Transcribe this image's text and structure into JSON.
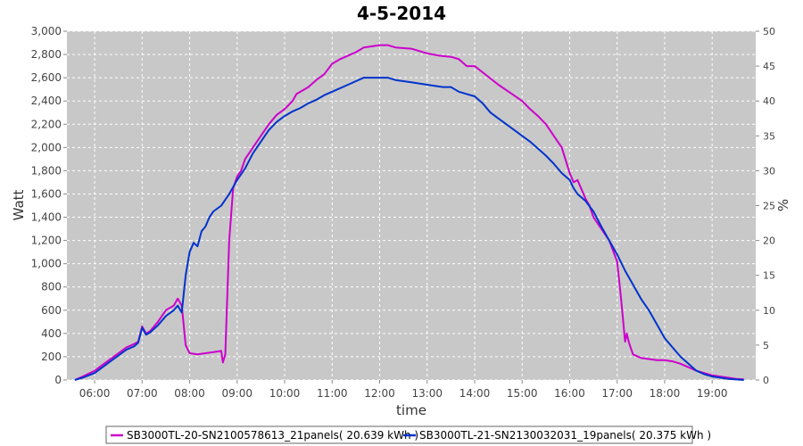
{
  "chart_data": {
    "type": "line",
    "title": "4-5-2014",
    "xlabel": "time",
    "ylabel": "Watt",
    "y2label": "%",
    "x_ticks": [
      "06:00",
      "07:00",
      "08:00",
      "09:00",
      "10:00",
      "11:00",
      "12:00",
      "13:00",
      "14:00",
      "15:00",
      "16:00",
      "17:00",
      "18:00",
      "19:00"
    ],
    "y_ticks": [
      "0",
      "200",
      "400",
      "600",
      "800",
      "1,000",
      "1,200",
      "1,400",
      "1,600",
      "1,800",
      "2,000",
      "2,200",
      "2,400",
      "2,600",
      "2,800",
      "3,000"
    ],
    "y2_ticks": [
      "0",
      "5",
      "10",
      "15",
      "20",
      "25",
      "30",
      "35",
      "40",
      "45",
      "50"
    ],
    "xlim": [
      "05:25",
      "19:55"
    ],
    "ylim": [
      0,
      3000
    ],
    "y2lim": [
      0,
      50
    ],
    "grid": true,
    "legend_position": "bottom",
    "colors": {
      "plot_bg": "#c8c8c8",
      "grid": "#ffffff"
    },
    "series": [
      {
        "name": "SB3000TL-20-SN2100578613_21panels( 20.639 kWh )",
        "color": "#cc00cc",
        "points": [
          [
            "05:35",
            0
          ],
          [
            "05:45",
            30
          ],
          [
            "06:00",
            80
          ],
          [
            "06:10",
            130
          ],
          [
            "06:20",
            180
          ],
          [
            "06:30",
            230
          ],
          [
            "06:40",
            280
          ],
          [
            "06:50",
            310
          ],
          [
            "06:55",
            330
          ],
          [
            "07:00",
            460
          ],
          [
            "07:05",
            400
          ],
          [
            "07:10",
            420
          ],
          [
            "07:20",
            500
          ],
          [
            "07:30",
            600
          ],
          [
            "07:40",
            640
          ],
          [
            "07:45",
            700
          ],
          [
            "07:50",
            640
          ],
          [
            "07:55",
            300
          ],
          [
            "08:00",
            230
          ],
          [
            "08:10",
            220
          ],
          [
            "08:20",
            230
          ],
          [
            "08:30",
            240
          ],
          [
            "08:40",
            250
          ],
          [
            "08:42",
            150
          ],
          [
            "08:45",
            220
          ],
          [
            "08:50",
            1200
          ],
          [
            "08:55",
            1650
          ],
          [
            "09:00",
            1750
          ],
          [
            "09:05",
            1800
          ],
          [
            "09:10",
            1900
          ],
          [
            "09:20",
            2000
          ],
          [
            "09:30",
            2100
          ],
          [
            "09:40",
            2200
          ],
          [
            "09:50",
            2280
          ],
          [
            "10:00",
            2330
          ],
          [
            "10:10",
            2400
          ],
          [
            "10:15",
            2460
          ],
          [
            "10:30",
            2520
          ],
          [
            "10:40",
            2580
          ],
          [
            "10:50",
            2630
          ],
          [
            "11:00",
            2720
          ],
          [
            "11:10",
            2760
          ],
          [
            "11:20",
            2790
          ],
          [
            "11:30",
            2820
          ],
          [
            "11:40",
            2860
          ],
          [
            "12:00",
            2880
          ],
          [
            "12:10",
            2880
          ],
          [
            "12:20",
            2860
          ],
          [
            "12:40",
            2850
          ],
          [
            "13:00",
            2810
          ],
          [
            "13:15",
            2790
          ],
          [
            "13:30",
            2780
          ],
          [
            "13:40",
            2760
          ],
          [
            "13:50",
            2700
          ],
          [
            "14:00",
            2700
          ],
          [
            "14:15",
            2620
          ],
          [
            "14:30",
            2540
          ],
          [
            "14:45",
            2470
          ],
          [
            "15:00",
            2400
          ],
          [
            "15:10",
            2330
          ],
          [
            "15:20",
            2270
          ],
          [
            "15:30",
            2200
          ],
          [
            "15:40",
            2100
          ],
          [
            "15:50",
            2000
          ],
          [
            "16:00",
            1780
          ],
          [
            "16:05",
            1700
          ],
          [
            "16:10",
            1720
          ],
          [
            "16:15",
            1640
          ],
          [
            "16:20",
            1560
          ],
          [
            "16:25",
            1500
          ],
          [
            "16:30",
            1400
          ],
          [
            "16:40",
            1300
          ],
          [
            "16:50",
            1200
          ],
          [
            "17:00",
            1020
          ],
          [
            "17:05",
            700
          ],
          [
            "17:10",
            330
          ],
          [
            "17:12",
            400
          ],
          [
            "17:15",
            320
          ],
          [
            "17:20",
            220
          ],
          [
            "17:30",
            190
          ],
          [
            "17:40",
            180
          ],
          [
            "17:50",
            170
          ],
          [
            "18:00",
            170
          ],
          [
            "18:10",
            160
          ],
          [
            "18:20",
            140
          ],
          [
            "18:30",
            110
          ],
          [
            "18:40",
            80
          ],
          [
            "18:50",
            60
          ],
          [
            "19:00",
            40
          ],
          [
            "19:10",
            30
          ],
          [
            "19:20",
            20
          ],
          [
            "19:30",
            10
          ],
          [
            "19:40",
            5
          ]
        ]
      },
      {
        "name": "SB3000TL-21-SN2130032031_19panels( 20.375 kWh )",
        "color": "#0033cc",
        "points": [
          [
            "05:35",
            0
          ],
          [
            "05:45",
            20
          ],
          [
            "06:00",
            60
          ],
          [
            "06:10",
            110
          ],
          [
            "06:20",
            160
          ],
          [
            "06:30",
            210
          ],
          [
            "06:40",
            260
          ],
          [
            "06:50",
            290
          ],
          [
            "06:55",
            320
          ],
          [
            "07:00",
            450
          ],
          [
            "07:05",
            390
          ],
          [
            "07:10",
            410
          ],
          [
            "07:20",
            470
          ],
          [
            "07:30",
            550
          ],
          [
            "07:40",
            600
          ],
          [
            "07:45",
            640
          ],
          [
            "07:50",
            580
          ],
          [
            "07:55",
            900
          ],
          [
            "08:00",
            1100
          ],
          [
            "08:05",
            1180
          ],
          [
            "08:10",
            1150
          ],
          [
            "08:15",
            1280
          ],
          [
            "08:20",
            1320
          ],
          [
            "08:25",
            1400
          ],
          [
            "08:30",
            1450
          ],
          [
            "08:40",
            1500
          ],
          [
            "08:50",
            1600
          ],
          [
            "09:00",
            1720
          ],
          [
            "09:10",
            1820
          ],
          [
            "09:20",
            1950
          ],
          [
            "09:30",
            2050
          ],
          [
            "09:40",
            2150
          ],
          [
            "09:50",
            2220
          ],
          [
            "10:00",
            2270
          ],
          [
            "10:10",
            2310
          ],
          [
            "10:20",
            2340
          ],
          [
            "10:30",
            2380
          ],
          [
            "10:40",
            2410
          ],
          [
            "10:50",
            2450
          ],
          [
            "11:00",
            2480
          ],
          [
            "11:10",
            2510
          ],
          [
            "11:20",
            2540
          ],
          [
            "11:30",
            2570
          ],
          [
            "11:40",
            2600
          ],
          [
            "12:00",
            2600
          ],
          [
            "12:10",
            2600
          ],
          [
            "12:20",
            2580
          ],
          [
            "12:40",
            2560
          ],
          [
            "13:00",
            2540
          ],
          [
            "13:20",
            2520
          ],
          [
            "13:30",
            2520
          ],
          [
            "13:40",
            2480
          ],
          [
            "13:50",
            2460
          ],
          [
            "14:00",
            2440
          ],
          [
            "14:10",
            2380
          ],
          [
            "14:20",
            2300
          ],
          [
            "14:30",
            2250
          ],
          [
            "14:40",
            2200
          ],
          [
            "14:50",
            2150
          ],
          [
            "15:00",
            2100
          ],
          [
            "15:10",
            2050
          ],
          [
            "15:20",
            1990
          ],
          [
            "15:30",
            1930
          ],
          [
            "15:40",
            1860
          ],
          [
            "15:50",
            1780
          ],
          [
            "16:00",
            1720
          ],
          [
            "16:05",
            1650
          ],
          [
            "16:10",
            1600
          ],
          [
            "16:20",
            1540
          ],
          [
            "16:30",
            1450
          ],
          [
            "16:40",
            1320
          ],
          [
            "16:50",
            1200
          ],
          [
            "17:00",
            1080
          ],
          [
            "17:10",
            940
          ],
          [
            "17:20",
            820
          ],
          [
            "17:30",
            700
          ],
          [
            "17:40",
            600
          ],
          [
            "17:50",
            480
          ],
          [
            "18:00",
            360
          ],
          [
            "18:10",
            280
          ],
          [
            "18:20",
            200
          ],
          [
            "18:30",
            140
          ],
          [
            "18:40",
            80
          ],
          [
            "18:50",
            50
          ],
          [
            "19:00",
            30
          ],
          [
            "19:10",
            20
          ],
          [
            "19:20",
            10
          ],
          [
            "19:40",
            0
          ]
        ]
      }
    ]
  }
}
